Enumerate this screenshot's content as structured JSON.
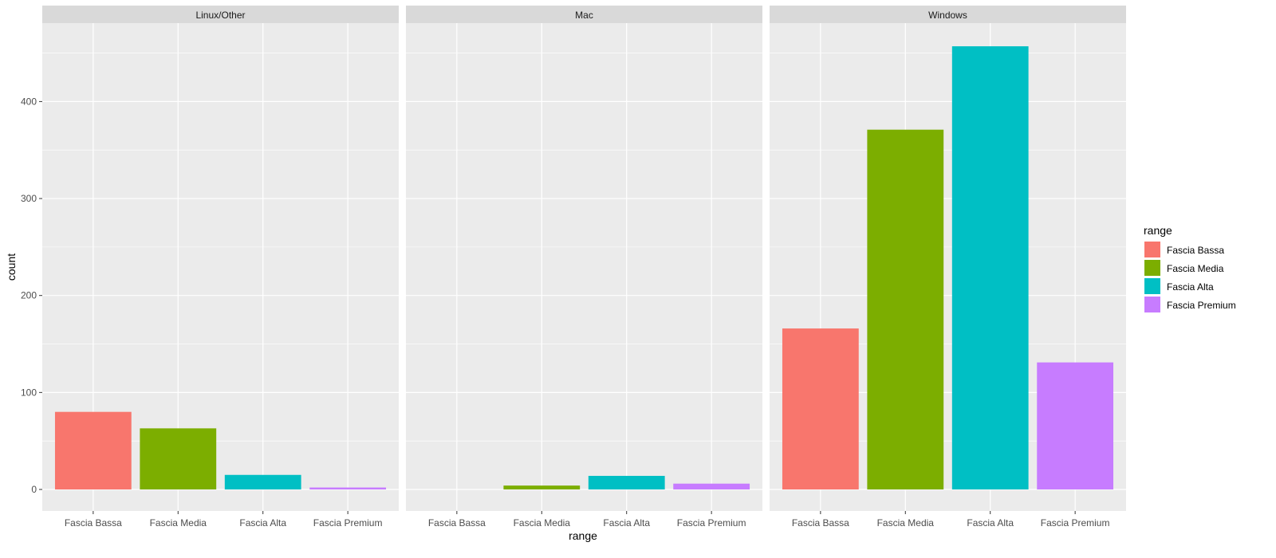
{
  "chart_data": {
    "type": "bar",
    "facet_by": "os",
    "panels": [
      {
        "strip": "Linux/Other",
        "values": [
          80,
          63,
          15,
          2
        ]
      },
      {
        "strip": "Mac",
        "values": [
          0,
          4,
          14,
          6
        ]
      },
      {
        "strip": "Windows",
        "values": [
          166,
          371,
          457,
          131
        ]
      }
    ],
    "categories": [
      "Fascia Bassa",
      "Fascia Media",
      "Fascia Alta",
      "Fascia Premium"
    ],
    "colors": [
      "#F8766D",
      "#7CAE00",
      "#00BFC4",
      "#C77CFF"
    ],
    "xlabel": "range",
    "ylabel": "count",
    "yticks": [
      0,
      100,
      200,
      300,
      400
    ],
    "ylim": [
      0,
      480
    ],
    "grid": true,
    "legend": {
      "title": "range",
      "position": "right",
      "entries": [
        "Fascia Bassa",
        "Fascia Media",
        "Fascia Alta",
        "Fascia Premium"
      ]
    }
  }
}
